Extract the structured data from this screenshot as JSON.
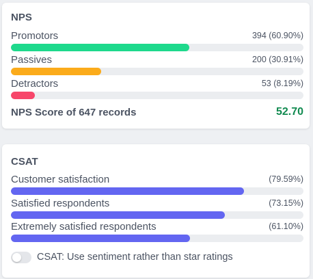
{
  "nps": {
    "title": "NPS",
    "metrics": [
      {
        "label": "Promotors",
        "value": "394 (60.90%)",
        "percent": 60.9,
        "color": "#1ed98c"
      },
      {
        "label": "Passives",
        "value": "200 (30.91%)",
        "percent": 30.91,
        "color": "#fbab1b"
      },
      {
        "label": "Detractors",
        "value": "53 (8.19%)",
        "percent": 8.19,
        "color": "#f7466a"
      }
    ],
    "score_label": "NPS Score of 647 records",
    "score_value": "52.70",
    "score_color": "#118a50"
  },
  "csat": {
    "title": "CSAT",
    "metrics": [
      {
        "label": "Customer satisfaction",
        "value": "(79.59%)",
        "percent": 79.59,
        "color": "#6366f1"
      },
      {
        "label": "Satisfied respondents",
        "value": "(73.15%)",
        "percent": 73.15,
        "color": "#6366f1"
      },
      {
        "label": "Extremely satisfied respondents",
        "value": "(61.10%)",
        "percent": 61.1,
        "color": "#6366f1"
      }
    ],
    "toggle_label": "CSAT: Use sentiment rather than star ratings",
    "toggle_on": false
  }
}
